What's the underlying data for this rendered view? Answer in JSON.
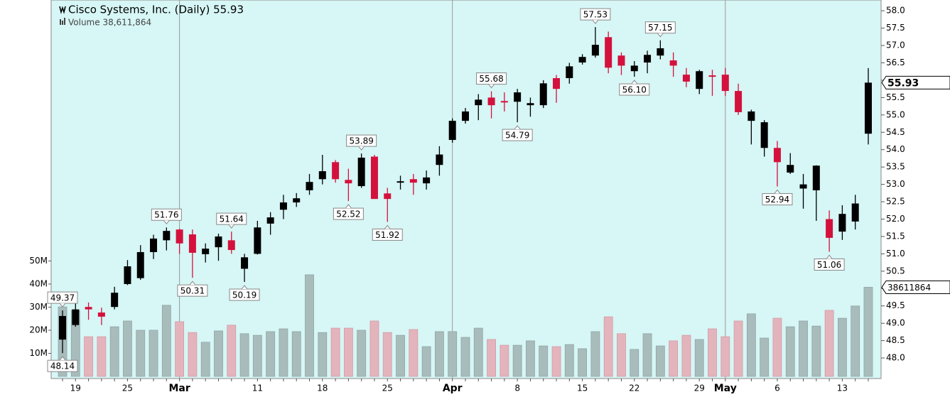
{
  "chart_data": {
    "type": "candlestick",
    "title": "Cisco Systems, Inc. (Daily) 55.93",
    "subtitle": "Volume 38,611,864",
    "categories": [
      null,
      "19",
      null,
      null,
      null,
      "25",
      null,
      null,
      null,
      "Mar",
      null,
      null,
      null,
      null,
      null,
      "11",
      null,
      null,
      null,
      null,
      "18",
      null,
      null,
      null,
      null,
      "25",
      null,
      null,
      null,
      null,
      "Apr",
      null,
      null,
      null,
      null,
      "8",
      null,
      null,
      null,
      null,
      "15",
      null,
      null,
      null,
      "22",
      null,
      null,
      null,
      null,
      "29",
      null,
      "May",
      null,
      null,
      null,
      "6",
      null,
      null,
      null,
      null,
      "13",
      null,
      null
    ],
    "open": [
      48.53,
      48.95,
      49.47,
      49.31,
      49.47,
      50.13,
      50.3,
      51.05,
      51.39,
      51.7,
      51.56,
      50.99,
      51.19,
      51.39,
      50.57,
      51.0,
      51.87,
      52.27,
      52.48,
      52.83,
      53.15,
      53.64,
      53.13,
      52.95,
      53.8,
      52.74,
      53.05,
      53.15,
      53.03,
      53.56,
      54.28,
      54.83,
      55.28,
      55.5,
      55.4,
      55.38,
      55.28,
      55.28,
      56.06,
      56.06,
      56.51,
      56.71,
      57.24,
      56.71,
      56.26,
      56.51,
      56.71,
      56.57,
      56.16,
      55.75,
      56.14,
      56.16,
      55.69,
      54.83,
      54.05,
      54.05,
      53.34,
      52.88,
      52.83,
      52.0,
      51.64,
      51.93,
      54.46
    ],
    "high": [
      49.37,
      49.68,
      49.6,
      49.45,
      50.05,
      50.82,
      51.25,
      51.55,
      51.76,
      51.72,
      51.7,
      51.3,
      51.58,
      51.64,
      51.0,
      51.95,
      52.2,
      52.7,
      52.75,
      53.3,
      53.85,
      53.7,
      53.45,
      53.89,
      53.85,
      52.9,
      53.25,
      53.3,
      53.4,
      54.1,
      54.9,
      55.2,
      55.6,
      55.68,
      55.65,
      55.75,
      55.5,
      56.0,
      56.15,
      56.5,
      56.75,
      57.53,
      57.4,
      56.8,
      56.55,
      56.85,
      57.15,
      56.8,
      56.35,
      56.3,
      56.3,
      56.35,
      55.9,
      55.15,
      54.85,
      54.25,
      53.9,
      53.3,
      53.55,
      52.25,
      52.4,
      52.7,
      56.35
    ],
    "low": [
      48.14,
      48.9,
      49.1,
      48.95,
      49.4,
      50.1,
      50.25,
      50.85,
      51.1,
      51.0,
      50.31,
      50.75,
      50.8,
      51.0,
      50.19,
      50.98,
      51.55,
      52.0,
      52.35,
      52.7,
      53.0,
      53.05,
      52.52,
      52.9,
      52.6,
      51.92,
      52.85,
      52.7,
      52.85,
      53.25,
      54.2,
      54.75,
      54.85,
      54.9,
      55.1,
      54.79,
      54.95,
      55.2,
      55.35,
      55.9,
      56.45,
      56.65,
      56.2,
      56.15,
      56.1,
      56.2,
      56.6,
      56.1,
      55.8,
      55.6,
      55.55,
      55.55,
      55.0,
      54.15,
      53.8,
      52.94,
      53.3,
      52.3,
      51.95,
      51.06,
      51.4,
      51.7,
      54.15
    ],
    "close": [
      49.21,
      49.4,
      49.4,
      49.19,
      49.88,
      50.64,
      51.05,
      51.44,
      51.66,
      51.3,
      51.03,
      51.15,
      51.5,
      51.11,
      50.9,
      51.76,
      52.05,
      52.48,
      52.6,
      53.07,
      53.38,
      53.15,
      53.03,
      53.77,
      52.58,
      52.58,
      53.09,
      53.05,
      53.2,
      53.86,
      54.83,
      55.1,
      55.44,
      55.28,
      55.36,
      55.65,
      55.34,
      55.91,
      55.75,
      56.4,
      56.67,
      57.02,
      56.36,
      56.42,
      56.42,
      56.73,
      56.92,
      56.42,
      55.96,
      56.26,
      56.1,
      55.69,
      55.08,
      55.1,
      54.79,
      53.64,
      53.56,
      53.0,
      53.54,
      51.46,
      52.15,
      52.45,
      55.93
    ],
    "high_labels": [
      "49.37",
      null,
      null,
      null,
      null,
      null,
      null,
      null,
      "51.76",
      null,
      null,
      null,
      null,
      "51.64",
      null,
      null,
      null,
      null,
      null,
      null,
      null,
      null,
      null,
      "53.89",
      null,
      null,
      null,
      null,
      null,
      null,
      null,
      null,
      null,
      "55.68",
      null,
      null,
      null,
      null,
      null,
      null,
      null,
      "57.53",
      null,
      null,
      null,
      null,
      "57.15",
      null,
      null,
      null,
      null,
      null,
      null,
      null,
      null,
      null,
      null,
      null,
      null,
      null,
      null,
      null,
      null
    ],
    "low_labels": [
      "48.14",
      null,
      null,
      null,
      null,
      null,
      null,
      null,
      null,
      null,
      "50.31",
      null,
      null,
      null,
      "50.19",
      null,
      null,
      null,
      null,
      null,
      null,
      null,
      "52.52",
      null,
      null,
      "51.92",
      null,
      null,
      null,
      null,
      null,
      null,
      null,
      null,
      null,
      "54.79",
      null,
      null,
      null,
      null,
      null,
      null,
      null,
      null,
      "56.10",
      null,
      null,
      null,
      null,
      null,
      null,
      null,
      null,
      null,
      null,
      "52.94",
      null,
      null,
      null,
      "51.06",
      null,
      null,
      null
    ],
    "volume": [
      30100000,
      28600000,
      17200000,
      17200000,
      21500000,
      24000000,
      20000000,
      20000000,
      30800000,
      23700000,
      19000000,
      14800000,
      19700000,
      22200000,
      18500000,
      17800000,
      19400000,
      20600000,
      19400000,
      44000000,
      19000000,
      20900000,
      20900000,
      20000000,
      24000000,
      19000000,
      17800000,
      20300000,
      12900000,
      19400000,
      19400000,
      16900000,
      20900000,
      16000000,
      13500000,
      13500000,
      15400000,
      13200000,
      12900000,
      13800000,
      12000000,
      19400000,
      25800000,
      18500000,
      11700000,
      18500000,
      13200000,
      15400000,
      17800000,
      16000000,
      20600000,
      17200000,
      24000000,
      27100000,
      16600000,
      25200000,
      21500000,
      24000000,
      21800000,
      28600000,
      25200000,
      30500000,
      38611864
    ],
    "ylim": [
      47.47,
      58.31
    ],
    "yticks": [
      {
        "value": 48,
        "label": "48.0"
      },
      48.5,
      {
        "value": 49,
        "label": "49.0"
      },
      49.5,
      {
        "value": 50,
        "label": "50.0"
      },
      50.5,
      {
        "value": 51,
        "label": "51.0"
      },
      51.5,
      {
        "value": 52,
        "label": "52.0"
      },
      52.5,
      {
        "value": 53,
        "label": "53.0"
      },
      53.5,
      {
        "value": 54,
        "label": "54.0"
      },
      54.5,
      {
        "value": 55,
        "label": "55.0"
      },
      55.5,
      {
        "value": 56,
        "label": "56.0"
      },
      56.5,
      {
        "value": 57,
        "label": "57.0"
      },
      57.5,
      {
        "value": 58,
        "label": "58.0"
      }
    ],
    "y2lim": [
      0,
      163000000
    ],
    "y2ticks": [
      {
        "value": 10000000,
        "label": "10M"
      },
      {
        "value": 20000000,
        "label": "20M"
      },
      {
        "value": 30000000,
        "label": "30M"
      },
      {
        "value": 40000000,
        "label": "40M"
      },
      {
        "value": 50000000,
        "label": "50M"
      }
    ],
    "up_color": "#000000",
    "down_color": "#d4113c",
    "volume_up_color": "#a9bcbc",
    "volume_down_color": "#e4b4bc",
    "background": "#d7f6f6"
  }
}
